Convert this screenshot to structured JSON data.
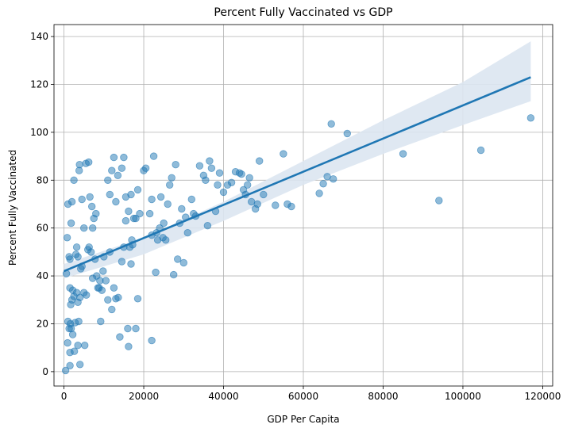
{
  "chart_data": {
    "type": "scatter",
    "title": "Percent Fully Vaccinated vs GDP",
    "xlabel": "GDP Per Capita",
    "ylabel": "Percent Fully Vaccinated",
    "xlim": [
      -2500,
      122500
    ],
    "ylim": [
      -6,
      145
    ],
    "xticks": [
      0,
      20000,
      40000,
      60000,
      80000,
      100000,
      120000
    ],
    "yticks": [
      0,
      20,
      40,
      60,
      80,
      100,
      120,
      140
    ],
    "grid": true,
    "colors": {
      "points": "#1f77b4",
      "line": "#1f77b4",
      "band": "#dbe6f1"
    },
    "points": [
      [
        400,
        0.5
      ],
      [
        900,
        12
      ],
      [
        1000,
        21
      ],
      [
        1300,
        18
      ],
      [
        1500,
        2.5
      ],
      [
        1500,
        8
      ],
      [
        1600,
        20
      ],
      [
        1800,
        18
      ],
      [
        2200,
        15.5
      ],
      [
        2600,
        8.5
      ],
      [
        2800,
        20.5
      ],
      [
        3500,
        11
      ],
      [
        3700,
        21
      ],
      [
        4000,
        3
      ],
      [
        5200,
        11
      ],
      [
        600,
        41
      ],
      [
        800,
        56
      ],
      [
        1000,
        70
      ],
      [
        1300,
        48
      ],
      [
        1500,
        47
      ],
      [
        1800,
        62
      ],
      [
        2000,
        71
      ],
      [
        2500,
        80
      ],
      [
        3000,
        49
      ],
      [
        3200,
        52
      ],
      [
        3500,
        48
      ],
      [
        3800,
        84
      ],
      [
        3900,
        86.5
      ],
      [
        4500,
        72
      ],
      [
        5000,
        60
      ],
      [
        5500,
        87
      ],
      [
        6200,
        87.5
      ],
      [
        6500,
        73
      ],
      [
        7000,
        69
      ],
      [
        7200,
        60
      ],
      [
        7500,
        64
      ],
      [
        8000,
        66
      ],
      [
        8500,
        35
      ],
      [
        9000,
        38
      ],
      [
        9500,
        34
      ],
      [
        10000,
        48
      ],
      [
        1500,
        35
      ],
      [
        1700,
        28
      ],
      [
        2000,
        30
      ],
      [
        2200,
        34
      ],
      [
        2500,
        31.5
      ],
      [
        3200,
        33
      ],
      [
        3500,
        29
      ],
      [
        4000,
        31
      ],
      [
        4200,
        43
      ],
      [
        4500,
        44
      ],
      [
        5000,
        33
      ],
      [
        5600,
        32
      ],
      [
        6000,
        51
      ],
      [
        6300,
        52
      ],
      [
        6800,
        50
      ],
      [
        7200,
        39
      ],
      [
        7800,
        47
      ],
      [
        8200,
        40
      ],
      [
        8800,
        35
      ],
      [
        9200,
        21
      ],
      [
        9800,
        42
      ],
      [
        10500,
        38
      ],
      [
        11000,
        30
      ],
      [
        11500,
        50
      ],
      [
        12000,
        26
      ],
      [
        12500,
        35
      ],
      [
        13000,
        30.5
      ],
      [
        13600,
        31
      ],
      [
        14000,
        14.5
      ],
      [
        14500,
        46
      ],
      [
        15000,
        52
      ],
      [
        15500,
        63
      ],
      [
        16200,
        10.5
      ],
      [
        16500,
        52
      ],
      [
        16800,
        45
      ],
      [
        17000,
        55
      ],
      [
        17500,
        64
      ],
      [
        18000,
        18
      ],
      [
        18500,
        30.5
      ],
      [
        11000,
        80
      ],
      [
        11500,
        74
      ],
      [
        12000,
        84
      ],
      [
        12500,
        89.5
      ],
      [
        13000,
        71
      ],
      [
        13500,
        82
      ],
      [
        14500,
        85
      ],
      [
        15000,
        89.5
      ],
      [
        15500,
        73
      ],
      [
        16200,
        67
      ],
      [
        16800,
        74
      ],
      [
        17200,
        53
      ],
      [
        18000,
        64
      ],
      [
        18500,
        76
      ],
      [
        19000,
        66
      ],
      [
        20000,
        84
      ],
      [
        20500,
        85
      ],
      [
        21500,
        66
      ],
      [
        22000,
        72
      ],
      [
        22500,
        90
      ],
      [
        22000,
        57
      ],
      [
        23000,
        41.5
      ],
      [
        23200,
        58
      ],
      [
        23500,
        55
      ],
      [
        24000,
        60
      ],
      [
        24300,
        73
      ],
      [
        24800,
        56
      ],
      [
        25000,
        62
      ],
      [
        25500,
        55
      ],
      [
        26000,
        70
      ],
      [
        26500,
        78
      ],
      [
        27000,
        81
      ],
      [
        27500,
        40.5
      ],
      [
        28000,
        86.5
      ],
      [
        28500,
        47
      ],
      [
        29000,
        62
      ],
      [
        29500,
        68
      ],
      [
        30000,
        45.5
      ],
      [
        30500,
        64.5
      ],
      [
        31000,
        58
      ],
      [
        22000,
        13
      ],
      [
        16000,
        18
      ],
      [
        32000,
        72
      ],
      [
        32500,
        66
      ],
      [
        33000,
        65
      ],
      [
        34000,
        86
      ],
      [
        35000,
        82
      ],
      [
        35500,
        80
      ],
      [
        36000,
        61
      ],
      [
        36500,
        88
      ],
      [
        37000,
        85
      ],
      [
        38000,
        67
      ],
      [
        38500,
        78
      ],
      [
        39000,
        83
      ],
      [
        40000,
        75
      ],
      [
        41000,
        78
      ],
      [
        42000,
        79
      ],
      [
        43000,
        83.5
      ],
      [
        44000,
        83
      ],
      [
        44500,
        82.5
      ],
      [
        45000,
        76
      ],
      [
        45500,
        74
      ],
      [
        46000,
        78
      ],
      [
        46500,
        81
      ],
      [
        47000,
        71
      ],
      [
        48000,
        68
      ],
      [
        48500,
        70
      ],
      [
        49000,
        88
      ],
      [
        50000,
        74
      ],
      [
        53000,
        69.5
      ],
      [
        55000,
        91
      ],
      [
        56000,
        70
      ],
      [
        57000,
        69
      ],
      [
        64000,
        74.5
      ],
      [
        65000,
        78.5
      ],
      [
        66000,
        81.5
      ],
      [
        67000,
        103.5
      ],
      [
        67500,
        80.5
      ],
      [
        71000,
        99.5
      ],
      [
        85000,
        91
      ],
      [
        94000,
        71.5
      ],
      [
        104500,
        92.5
      ],
      [
        117000,
        106
      ]
    ],
    "regression": {
      "x": [
        0,
        117000
      ],
      "y": [
        42,
        123
      ]
    },
    "confidence_band": {
      "x": [
        0,
        20000,
        40000,
        60000,
        80000,
        100000,
        117000
      ],
      "upper": [
        45,
        56,
        71,
        88,
        105,
        121,
        138
      ],
      "lower": [
        39,
        49,
        63,
        78,
        91,
        103,
        113
      ]
    }
  }
}
